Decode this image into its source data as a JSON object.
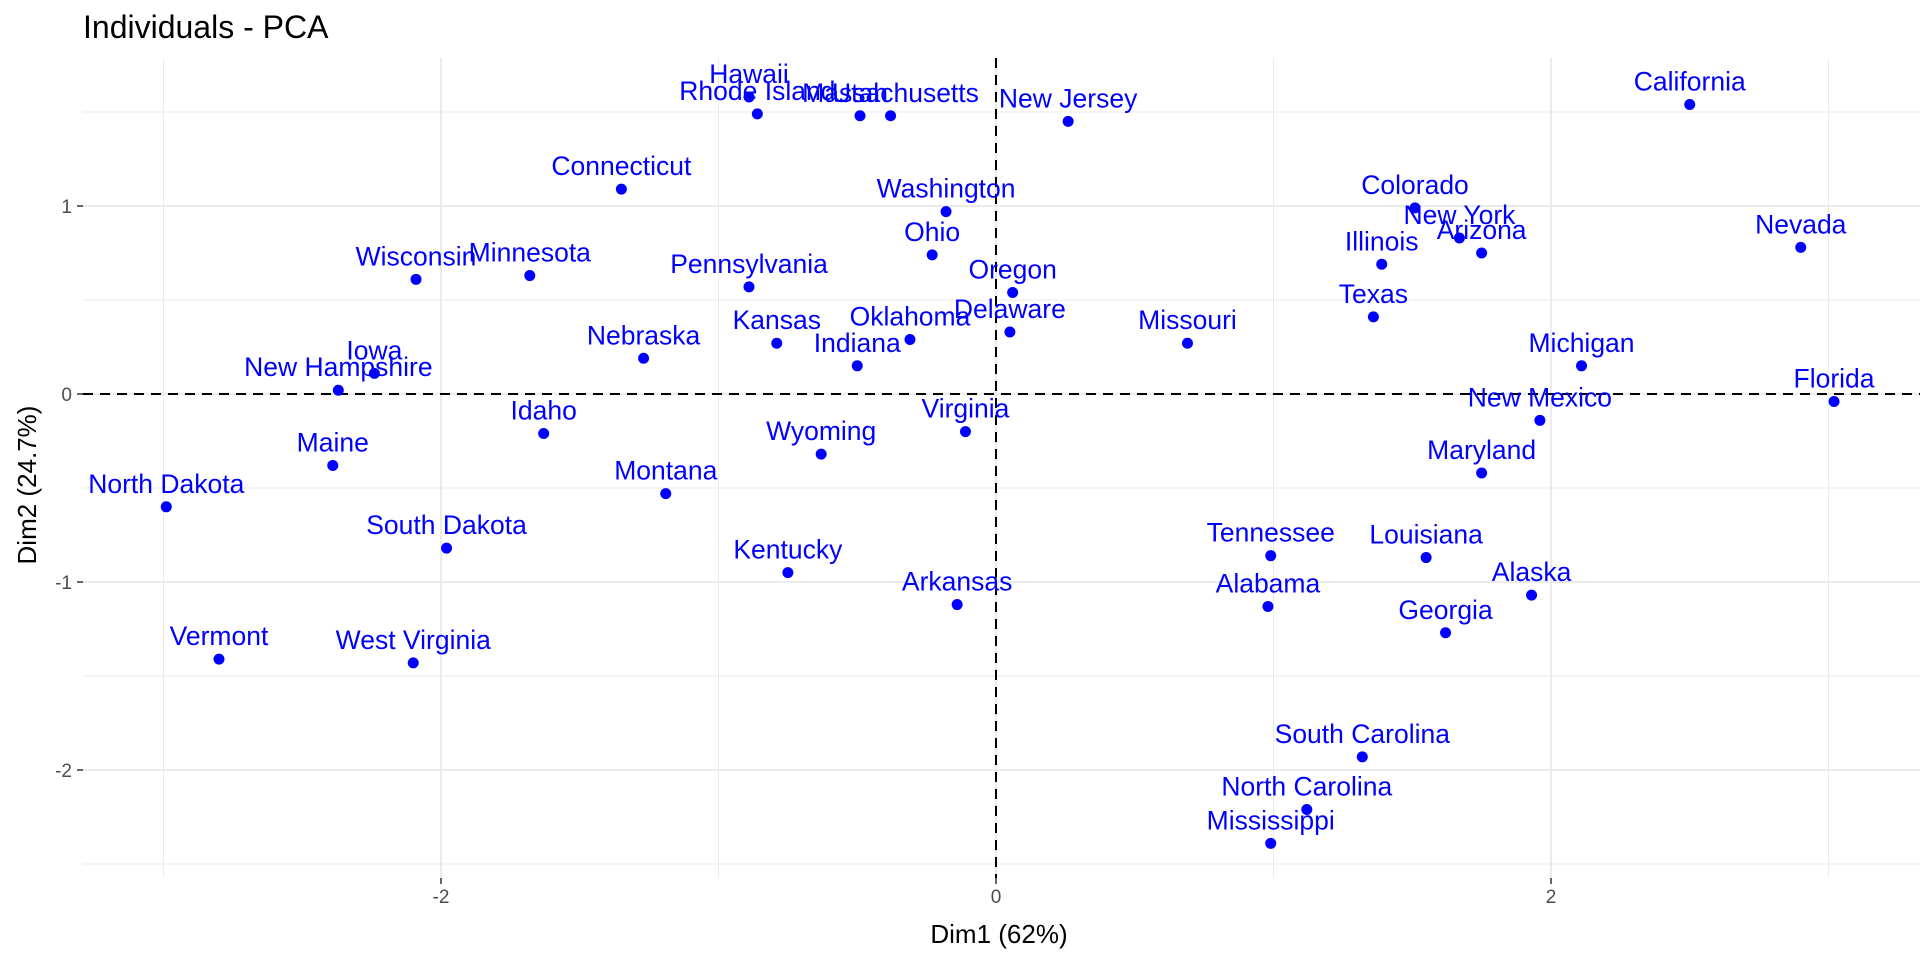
{
  "chart_data": {
    "type": "scatter",
    "title": "Individuals - PCA",
    "xlabel": "Dim1 (62%)",
    "ylabel": "Dim2 (24.7%)",
    "xlim": [
      -3.3,
      3.3
    ],
    "ylim": [
      -2.6,
      1.75
    ],
    "x_ticks": [
      -2,
      0,
      2
    ],
    "y_ticks": [
      -2,
      -1,
      0,
      1
    ],
    "grid": true,
    "reference_lines": {
      "x": 0,
      "y": 0
    },
    "point_color": "#0000ff",
    "points": [
      {
        "name": "Hawaii",
        "x": -0.89,
        "y": 1.58
      },
      {
        "name": "Rhode Island",
        "x": -0.86,
        "y": 1.49
      },
      {
        "name": "Utah",
        "x": -0.49,
        "y": 1.48
      },
      {
        "name": "Massachusetts",
        "x": -0.38,
        "y": 1.48
      },
      {
        "name": "New Jersey",
        "x": 0.26,
        "y": 1.45
      },
      {
        "name": "California",
        "x": 2.5,
        "y": 1.54
      },
      {
        "name": "Connecticut",
        "x": -1.35,
        "y": 1.09
      },
      {
        "name": "Washington",
        "x": -0.18,
        "y": 0.97
      },
      {
        "name": "Colorado",
        "x": 1.51,
        "y": 0.99
      },
      {
        "name": "Ohio",
        "x": -0.23,
        "y": 0.74
      },
      {
        "name": "New York",
        "x": 1.67,
        "y": 0.83
      },
      {
        "name": "Arizona",
        "x": 1.75,
        "y": 0.75
      },
      {
        "name": "Illinois",
        "x": 1.39,
        "y": 0.69
      },
      {
        "name": "Nevada",
        "x": 2.9,
        "y": 0.78
      },
      {
        "name": "Wisconsin",
        "x": -2.09,
        "y": 0.61
      },
      {
        "name": "Minnesota",
        "x": -1.68,
        "y": 0.63
      },
      {
        "name": "Pennsylvania",
        "x": -0.89,
        "y": 0.57
      },
      {
        "name": "Oregon",
        "x": 0.06,
        "y": 0.54
      },
      {
        "name": "Delaware",
        "x": 0.05,
        "y": 0.33
      },
      {
        "name": "Texas",
        "x": 1.36,
        "y": 0.41
      },
      {
        "name": "Missouri",
        "x": 0.69,
        "y": 0.27
      },
      {
        "name": "Iowa",
        "x": -2.24,
        "y": 0.11
      },
      {
        "name": "Nebraska",
        "x": -1.27,
        "y": 0.19
      },
      {
        "name": "Kansas",
        "x": -0.79,
        "y": 0.27
      },
      {
        "name": "Oklahoma",
        "x": -0.31,
        "y": 0.29
      },
      {
        "name": "Indiana",
        "x": -0.5,
        "y": 0.15
      },
      {
        "name": "Michigan",
        "x": 2.11,
        "y": 0.15
      },
      {
        "name": "New Hampshire",
        "x": -2.37,
        "y": 0.02
      },
      {
        "name": "Florida",
        "x": 3.02,
        "y": -0.04
      },
      {
        "name": "New Mexico",
        "x": 1.96,
        "y": -0.14
      },
      {
        "name": "Virginia",
        "x": -0.11,
        "y": -0.2
      },
      {
        "name": "Idaho",
        "x": -1.63,
        "y": -0.21
      },
      {
        "name": "Wyoming",
        "x": -0.63,
        "y": -0.32
      },
      {
        "name": "Maine",
        "x": -2.39,
        "y": -0.38
      },
      {
        "name": "Maryland",
        "x": 1.75,
        "y": -0.42
      },
      {
        "name": "Montana",
        "x": -1.19,
        "y": -0.53
      },
      {
        "name": "North Dakota",
        "x": -2.99,
        "y": -0.6
      },
      {
        "name": "South Dakota",
        "x": -1.98,
        "y": -0.82
      },
      {
        "name": "Tennessee",
        "x": 0.99,
        "y": -0.86
      },
      {
        "name": "Louisiana",
        "x": 1.55,
        "y": -0.87
      },
      {
        "name": "Kentucky",
        "x": -0.75,
        "y": -0.95
      },
      {
        "name": "Alaska",
        "x": 1.93,
        "y": -1.07
      },
      {
        "name": "Arkansas",
        "x": -0.14,
        "y": -1.12
      },
      {
        "name": "Alabama",
        "x": 0.98,
        "y": -1.13
      },
      {
        "name": "Georgia",
        "x": 1.62,
        "y": -1.27
      },
      {
        "name": "Vermont",
        "x": -2.8,
        "y": -1.41
      },
      {
        "name": "West Virginia",
        "x": -2.1,
        "y": -1.43
      },
      {
        "name": "South Carolina",
        "x": 1.32,
        "y": -1.93
      },
      {
        "name": "North Carolina",
        "x": 1.12,
        "y": -2.21
      },
      {
        "name": "Mississippi",
        "x": 0.99,
        "y": -2.39
      }
    ]
  }
}
